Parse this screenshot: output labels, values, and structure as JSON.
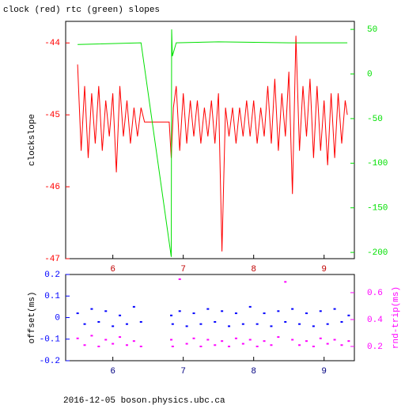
{
  "chart_data": [
    {
      "type": "line",
      "title": "clock (red) rtc (green) slopes",
      "ylabel": "clockslope",
      "xlim": [
        5.33,
        9.43
      ],
      "xticks": [
        6,
        7,
        8,
        9
      ],
      "ylim": [
        -47.0,
        -43.7
      ],
      "yticks": [
        -47,
        -46,
        -45,
        -44
      ],
      "y2lim": [
        -207,
        59
      ],
      "y2ticks": [
        -200,
        -150,
        -100,
        -50,
        0,
        50
      ],
      "series": [
        {
          "name": "clock",
          "color": "#ff0000",
          "axis": "y",
          "x": [
            5.5,
            5.55,
            5.6,
            5.65,
            5.7,
            5.75,
            5.8,
            5.85,
            5.9,
            5.95,
            6,
            6.05,
            6.1,
            6.15,
            6.2,
            6.25,
            6.3,
            6.35,
            6.4,
            6.45,
            6.65,
            6.8,
            6.83,
            6.86,
            6.9,
            6.95,
            7,
            7.05,
            7.1,
            7.15,
            7.2,
            7.25,
            7.3,
            7.35,
            7.4,
            7.45,
            7.5,
            7.55,
            7.6,
            7.65,
            7.7,
            7.75,
            7.8,
            7.85,
            7.9,
            7.95,
            8,
            8.05,
            8.1,
            8.15,
            8.2,
            8.25,
            8.3,
            8.35,
            8.4,
            8.45,
            8.5,
            8.55,
            8.6,
            8.65,
            8.7,
            8.75,
            8.8,
            8.85,
            8.9,
            8.95,
            9,
            9.05,
            9.1,
            9.15,
            9.2,
            9.25,
            9.3,
            9.33
          ],
          "values": [
            -44.3,
            -45.5,
            -44.6,
            -45.6,
            -44.7,
            -45.4,
            -44.6,
            -45.5,
            -44.8,
            -45.3,
            -44.7,
            -45.8,
            -44.6,
            -45.3,
            -44.8,
            -45.4,
            -44.9,
            -45.3,
            -44.9,
            -45.1,
            -45.1,
            -45.1,
            -45.6,
            -44.9,
            -44.6,
            -45.5,
            -44.7,
            -45.4,
            -44.8,
            -45.3,
            -44.8,
            -45.4,
            -44.9,
            -45.3,
            -44.8,
            -45.4,
            -44.7,
            -46.9,
            -44.9,
            -45.3,
            -44.9,
            -45.4,
            -44.9,
            -45.3,
            -44.8,
            -45.3,
            -44.8,
            -45.4,
            -44.9,
            -45.3,
            -44.6,
            -45.4,
            -44.5,
            -45.5,
            -44.7,
            -45.3,
            -44.4,
            -46.1,
            -43.9,
            -45.5,
            -44.6,
            -45.3,
            -44.5,
            -45.6,
            -44.6,
            -45.5,
            -44.8,
            -45.7,
            -44.7,
            -45.6,
            -44.7,
            -45.4,
            -44.8,
            -45.0
          ]
        },
        {
          "name": "rtc",
          "color": "#00e000",
          "axis": "y2",
          "x": [
            5.5,
            6.4,
            6.83,
            6.835,
            6.845,
            6.9,
            7.5,
            8.5,
            9.33
          ],
          "values": [
            33,
            35,
            -205,
            50,
            20,
            35,
            36,
            35,
            35
          ]
        }
      ]
    },
    {
      "type": "scatter",
      "ylabel": "offset(ms)",
      "y2label": "rnd-trip(ms)",
      "xlim": [
        5.33,
        9.43
      ],
      "xticks": [
        6,
        7,
        8,
        9
      ],
      "ylim": [
        -0.2,
        0.2
      ],
      "yticks": [
        -0.2,
        -0.1,
        0,
        0.1,
        0.2
      ],
      "y2lim": [
        0.094,
        0.735
      ],
      "y2ticks": [
        0.2,
        0.4,
        0.6
      ],
      "series": [
        {
          "name": "offset",
          "color": "#0000ff",
          "axis": "y",
          "x": [
            5.5,
            5.6,
            5.7,
            5.8,
            5.9,
            6,
            6.1,
            6.2,
            6.3,
            6.4,
            6.83,
            6.85,
            6.95,
            7.05,
            7.15,
            7.25,
            7.35,
            7.45,
            7.55,
            7.65,
            7.75,
            7.85,
            7.95,
            8.05,
            8.15,
            8.25,
            8.35,
            8.45,
            8.55,
            8.65,
            8.75,
            8.85,
            8.95,
            9.05,
            9.15,
            9.25,
            9.35
          ],
          "values": [
            0.02,
            -0.03,
            0.04,
            -0.02,
            0.03,
            -0.04,
            0.01,
            -0.03,
            0.05,
            -0.02,
            0.01,
            -0.03,
            0.03,
            -0.04,
            0.02,
            -0.03,
            0.04,
            -0.02,
            0.03,
            -0.04,
            0.02,
            -0.03,
            0.05,
            -0.03,
            0.02,
            -0.04,
            0.03,
            -0.02,
            0.04,
            -0.03,
            0.02,
            -0.04,
            0.03,
            -0.03,
            0.04,
            -0.02,
            0.01
          ]
        },
        {
          "name": "rnd-trip",
          "color": "#ff00ff",
          "axis": "y2",
          "x": [
            5.5,
            5.6,
            5.7,
            5.8,
            5.9,
            6,
            6.1,
            6.2,
            6.3,
            6.4,
            6.83,
            6.85,
            6.95,
            7.05,
            7.15,
            7.25,
            7.35,
            7.45,
            7.55,
            7.65,
            7.75,
            7.85,
            7.95,
            8.05,
            8.15,
            8.25,
            8.35,
            8.45,
            8.55,
            8.65,
            8.75,
            8.85,
            8.95,
            9.05,
            9.15,
            9.25,
            9.35
          ],
          "values": [
            0.26,
            0.21,
            0.28,
            0.2,
            0.25,
            0.22,
            0.27,
            0.21,
            0.24,
            0.2,
            0.25,
            0.2,
            0.7,
            0.22,
            0.26,
            0.2,
            0.25,
            0.21,
            0.24,
            0.2,
            0.26,
            0.22,
            0.25,
            0.2,
            0.24,
            0.21,
            0.27,
            0.68,
            0.25,
            0.21,
            0.24,
            0.2,
            0.26,
            0.22,
            0.25,
            0.21,
            0.24
          ]
        }
      ]
    }
  ],
  "footer": "2016-12-05  boson.physics.ubc.ca"
}
